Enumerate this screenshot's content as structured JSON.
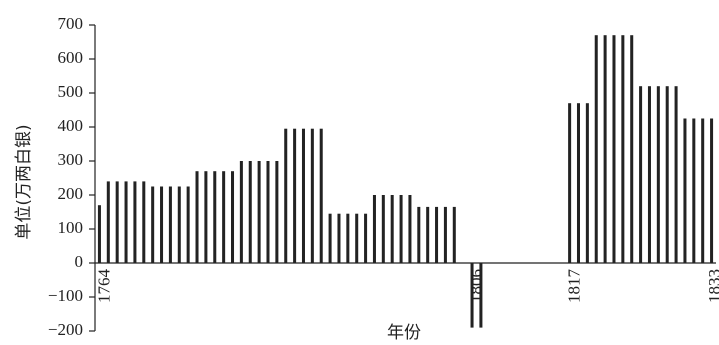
{
  "chart_data": {
    "type": "bar",
    "ylabel": "单位(万两白银)",
    "xlabel": "年份",
    "ylim": [
      -200,
      700
    ],
    "yticks": [
      -200,
      -100,
      0,
      100,
      200,
      300,
      400,
      500,
      600,
      700
    ],
    "ytick_labels": [
      "−200",
      "−100",
      "0",
      "100",
      "200",
      "300",
      "400",
      "500",
      "600",
      "700"
    ],
    "x_axis_start_year": 1764,
    "x_axis_end_year": 1833,
    "labeled_years": [
      "1764",
      "1806",
      "1817",
      "1833"
    ],
    "bar_color": "#222222",
    "grid": false,
    "series": [
      {
        "values": [
          {
            "x": 1764,
            "y": 170
          },
          {
            "x": 1765,
            "y": 240
          },
          {
            "x": 1766,
            "y": 240
          },
          {
            "x": 1767,
            "y": 240
          },
          {
            "x": 1768,
            "y": 240
          },
          {
            "x": 1769,
            "y": 240
          },
          {
            "x": 1770,
            "y": 225
          },
          {
            "x": 1771,
            "y": 225
          },
          {
            "x": 1772,
            "y": 225
          },
          {
            "x": 1773,
            "y": 225
          },
          {
            "x": 1774,
            "y": 225
          },
          {
            "x": 1775,
            "y": 270
          },
          {
            "x": 1776,
            "y": 270
          },
          {
            "x": 1777,
            "y": 270
          },
          {
            "x": 1778,
            "y": 270
          },
          {
            "x": 1779,
            "y": 270
          },
          {
            "x": 1780,
            "y": 300
          },
          {
            "x": 1781,
            "y": 300
          },
          {
            "x": 1782,
            "y": 300
          },
          {
            "x": 1783,
            "y": 300
          },
          {
            "x": 1784,
            "y": 300
          },
          {
            "x": 1785,
            "y": 395
          },
          {
            "x": 1786,
            "y": 395
          },
          {
            "x": 1787,
            "y": 395
          },
          {
            "x": 1788,
            "y": 395
          },
          {
            "x": 1789,
            "y": 395
          },
          {
            "x": 1790,
            "y": 145
          },
          {
            "x": 1791,
            "y": 145
          },
          {
            "x": 1792,
            "y": 145
          },
          {
            "x": 1793,
            "y": 145
          },
          {
            "x": 1794,
            "y": 145
          },
          {
            "x": 1795,
            "y": 200
          },
          {
            "x": 1796,
            "y": 200
          },
          {
            "x": 1797,
            "y": 200
          },
          {
            "x": 1798,
            "y": 200
          },
          {
            "x": 1799,
            "y": 200
          },
          {
            "x": 1800,
            "y": 165
          },
          {
            "x": 1801,
            "y": 165
          },
          {
            "x": 1802,
            "y": 165
          },
          {
            "x": 1803,
            "y": 165
          },
          {
            "x": 1804,
            "y": 165
          },
          {
            "x": 1806,
            "y": -190
          },
          {
            "x": 1807,
            "y": -190
          },
          {
            "x": 1817,
            "y": 470
          },
          {
            "x": 1818,
            "y": 470
          },
          {
            "x": 1819,
            "y": 470
          },
          {
            "x": 1820,
            "y": 670
          },
          {
            "x": 1821,
            "y": 670
          },
          {
            "x": 1822,
            "y": 670
          },
          {
            "x": 1823,
            "y": 670
          },
          {
            "x": 1824,
            "y": 670
          },
          {
            "x": 1825,
            "y": 520
          },
          {
            "x": 1826,
            "y": 520
          },
          {
            "x": 1827,
            "y": 520
          },
          {
            "x": 1828,
            "y": 520
          },
          {
            "x": 1829,
            "y": 520
          },
          {
            "x": 1830,
            "y": 425
          },
          {
            "x": 1831,
            "y": 425
          },
          {
            "x": 1832,
            "y": 425
          },
          {
            "x": 1833,
            "y": 425
          }
        ]
      }
    ]
  }
}
